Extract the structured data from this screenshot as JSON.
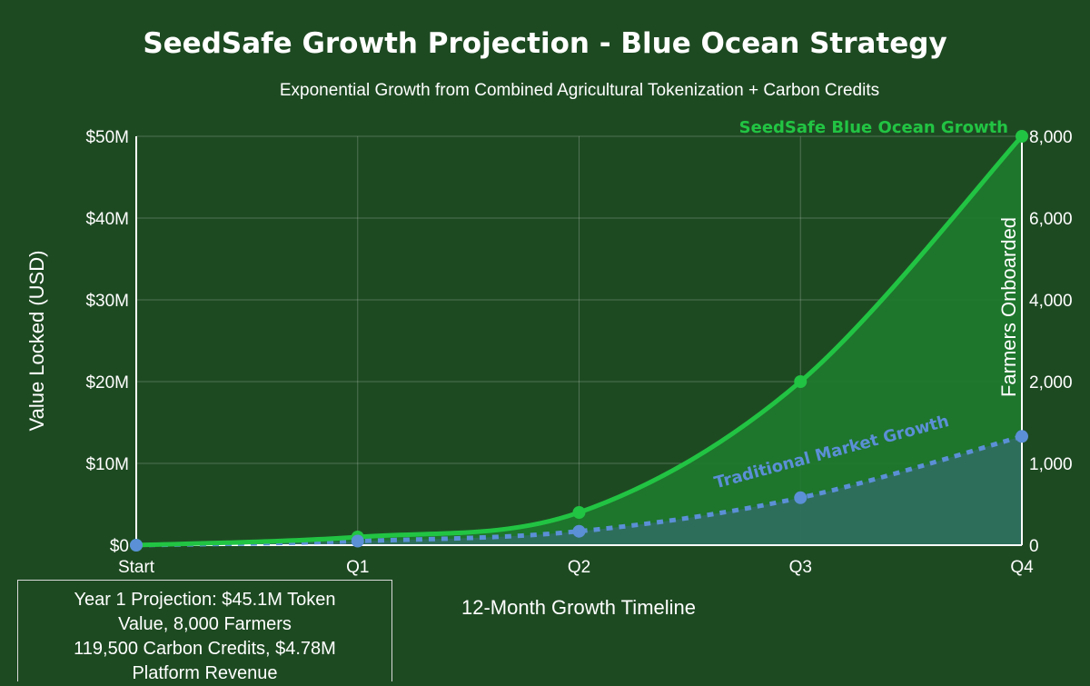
{
  "chart_data": {
    "type": "line",
    "title": "SeedSafe Growth Projection - Blue Ocean Strategy",
    "subtitle": "Exponential Growth from Combined Agricultural Tokenization + Carbon Credits",
    "xlabel": "12-Month Growth Timeline",
    "ylabel_left": "Value Locked (USD)",
    "ylabel_right": "Farmers Onboarded",
    "categories": [
      "Start",
      "Q1",
      "Q2",
      "Q3",
      "Q4"
    ],
    "yticks_left": [
      "$0",
      "$10M",
      "$20M",
      "$30M",
      "$40M",
      "$50M"
    ],
    "yticks_right": [
      "0",
      "1,000",
      "2,000",
      "4,000",
      "6,000",
      "8,000"
    ],
    "ylim": [
      0,
      50
    ],
    "grid": true,
    "series": [
      {
        "name": "SeedSafe Blue Ocean Growth",
        "values": [
          0,
          1,
          4,
          20,
          50
        ],
        "color": "#22c443",
        "style": "solid",
        "fill": "#1e7a2e"
      },
      {
        "name": "Traditional Market Growth",
        "values": [
          0,
          0.5,
          1.7,
          5.8,
          13.3
        ],
        "color": "#5b8fd6",
        "style": "dashed",
        "fill": "#2f6e60"
      }
    ]
  },
  "summary": {
    "line1": "Year 1 Projection: $45.1M Token",
    "line2": "Value, 8,000 Farmers",
    "line3": "119,500 Carbon Credits, $4.78M",
    "line4": "Platform Revenue"
  }
}
